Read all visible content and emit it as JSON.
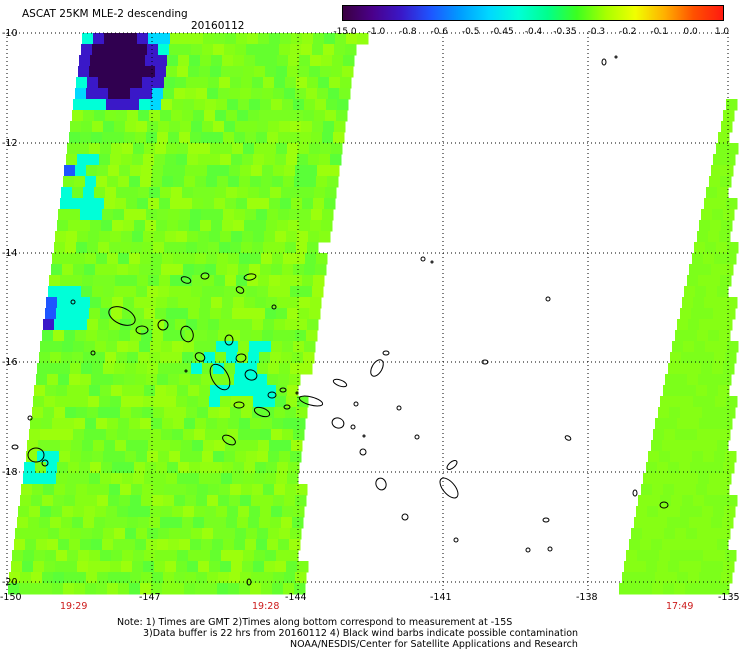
{
  "header": {
    "title": "ASCAT 25KM MLE-2 descending",
    "date": "20160112"
  },
  "colorbar": {
    "ticks": [
      "-15.0",
      "-1.0",
      "-0.8",
      "-0.6",
      "-0.5",
      "-0.45",
      "-0.4",
      "-0.35",
      "-0.3",
      "-0.2",
      "-0.1",
      "0.0",
      "1.0"
    ],
    "colors": [
      "#3a0040",
      "#4a008a",
      "#3a18c8",
      "#1e55ff",
      "#009cff",
      "#00d8ff",
      "#00ffd8",
      "#00ff8c",
      "#3cff20",
      "#a8ff00",
      "#f0ff00",
      "#ffb000",
      "#ff5000",
      "#ff1a10"
    ]
  },
  "axes": {
    "lat_labels": [
      "-10",
      "-12",
      "-14",
      "-16",
      "-18",
      "-20"
    ],
    "lon_labels": [
      "-150",
      "-147",
      "-144",
      "-141",
      "-138",
      "-135"
    ]
  },
  "pass_times": [
    "19:29",
    "19:28",
    "17:49"
  ],
  "notes": {
    "line1": "Note: 1) Times are GMT 2)Times along bottom correspond to measurement at -15S",
    "line2": "3)Data buffer is 22 hrs from 20160112 4) Black wind barbs indicate possible contamination",
    "line3": "NOAA/NESDIS/Center for Satellite Applications and Research"
  }
}
